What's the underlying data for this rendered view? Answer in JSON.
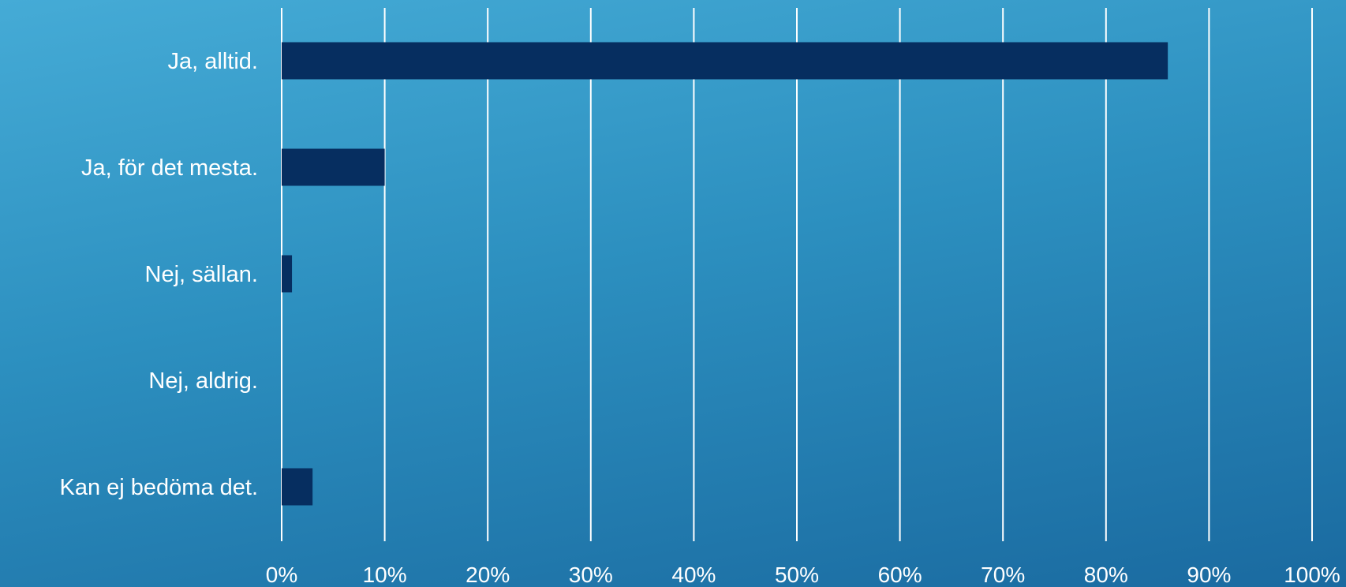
{
  "chart_data": {
    "type": "bar",
    "orientation": "horizontal",
    "categories": [
      "Ja, alltid.",
      "Ja, för det mesta.",
      "Nej, sällan.",
      "Nej, aldrig.",
      "Kan ej bedöma det."
    ],
    "values": [
      86,
      10,
      1,
      0,
      3
    ],
    "xlim": [
      0,
      100
    ],
    "x_ticks": [
      "0%",
      "10%",
      "20%",
      "30%",
      "40%",
      "50%",
      "60%",
      "70%",
      "80%",
      "90%",
      "100%"
    ],
    "grid": "vertical",
    "bar_color": "#062e60",
    "grid_color": "#ffffff",
    "text_color": "#ffffff"
  }
}
